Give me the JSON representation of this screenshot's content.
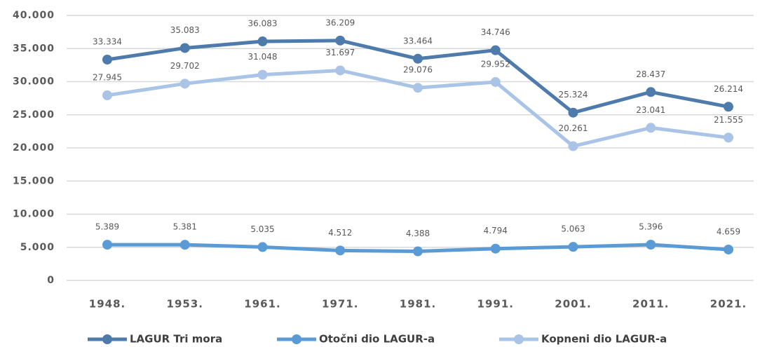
{
  "chart_data": {
    "type": "line",
    "categories": [
      "1948.",
      "1953.",
      "1961.",
      "1971.",
      "1981.",
      "1991.",
      "2001.",
      "2011.",
      "2021."
    ],
    "series": [
      {
        "name": "LAGUR Tri mora",
        "color": "#4e7bab",
        "values": [
          33334,
          35083,
          36083,
          36209,
          33464,
          34746,
          25324,
          28437,
          26214
        ],
        "value_labels": [
          "33.334",
          "35.083",
          "36.083",
          "36.209",
          "33.464",
          "34.746",
          "25.324",
          "28.437",
          "26.214"
        ]
      },
      {
        "name": "Otočni dio LAGUR-a",
        "color": "#5b9bd5",
        "values": [
          5389,
          5381,
          5035,
          4512,
          4388,
          4794,
          5063,
          5396,
          4659
        ],
        "value_labels": [
          "5.389",
          "5.381",
          "5.035",
          "4.512",
          "4.388",
          "4.794",
          "5.063",
          "5.396",
          "4.659"
        ]
      },
      {
        "name": "Kopneni dio LAGUR-a",
        "color": "#a9c4e6",
        "values": [
          27945,
          29702,
          31048,
          31697,
          29076,
          29952,
          20261,
          23041,
          21555
        ],
        "value_labels": [
          "27.945",
          "29.702",
          "31.048",
          "31.697",
          "29.076",
          "29.952",
          "20.261",
          "23.041",
          "21.555"
        ]
      }
    ],
    "ylim": [
      0,
      40000
    ],
    "yticks": [
      0,
      {
        "value": 5000,
        "label": "5.000"
      },
      {
        "value": 10000,
        "label": "10.000"
      },
      {
        "value": 15000,
        "label": "15.000"
      },
      {
        "value": 20000,
        "label": "20.000"
      },
      {
        "value": 25000,
        "label": "25.000"
      },
      {
        "value": 30000,
        "label": "30.000"
      },
      {
        "value": 35000,
        "label": "35.000"
      },
      {
        "value": 40000,
        "label": "40.000"
      }
    ],
    "grid": true,
    "legend": "bottom"
  }
}
